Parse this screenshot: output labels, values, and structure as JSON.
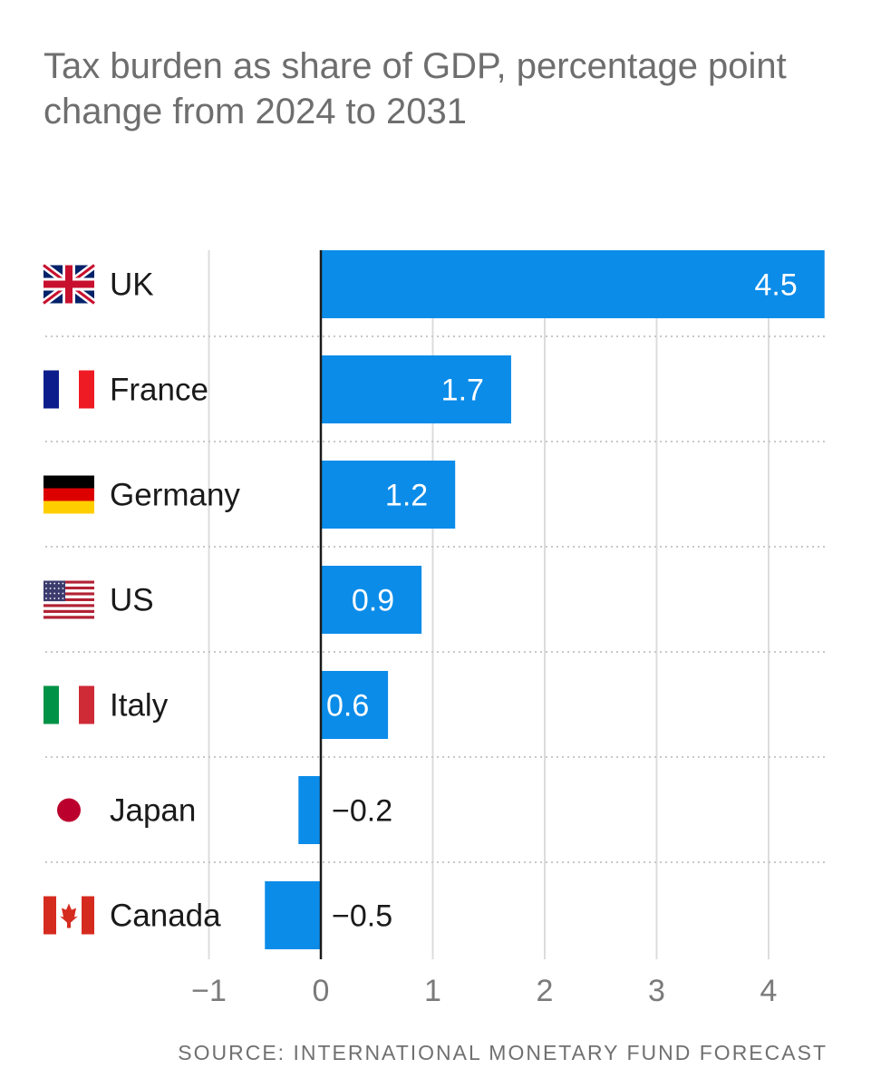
{
  "chart_data": {
    "type": "bar",
    "orientation": "horizontal",
    "title": "Tax burden as share of GDP, percentage point change from 2024 to 2031",
    "categories": [
      "UK",
      "France",
      "Germany",
      "US",
      "Italy",
      "Japan",
      "Canada"
    ],
    "values": [
      4.5,
      1.7,
      1.2,
      0.9,
      0.6,
      -0.2,
      -0.5
    ],
    "value_labels": [
      "4.5",
      "1.7",
      "1.2",
      "0.9",
      "0.6",
      "−0.2",
      "−0.5"
    ],
    "flag_icons": [
      "uk-flag-icon",
      "france-flag-icon",
      "germany-flag-icon",
      "us-flag-icon",
      "italy-flag-icon",
      "japan-flag-icon",
      "canada-flag-icon"
    ],
    "xlim": [
      -1,
      4.5
    ],
    "xticks": [
      -1,
      0,
      1,
      2,
      3,
      4
    ],
    "xtick_labels": [
      "−1",
      "0",
      "1",
      "2",
      "3",
      "4"
    ],
    "grid": true,
    "bar_color": "#0b8ce9",
    "source": "SOURCE: INTERNATIONAL MONETARY FUND FORECAST"
  }
}
